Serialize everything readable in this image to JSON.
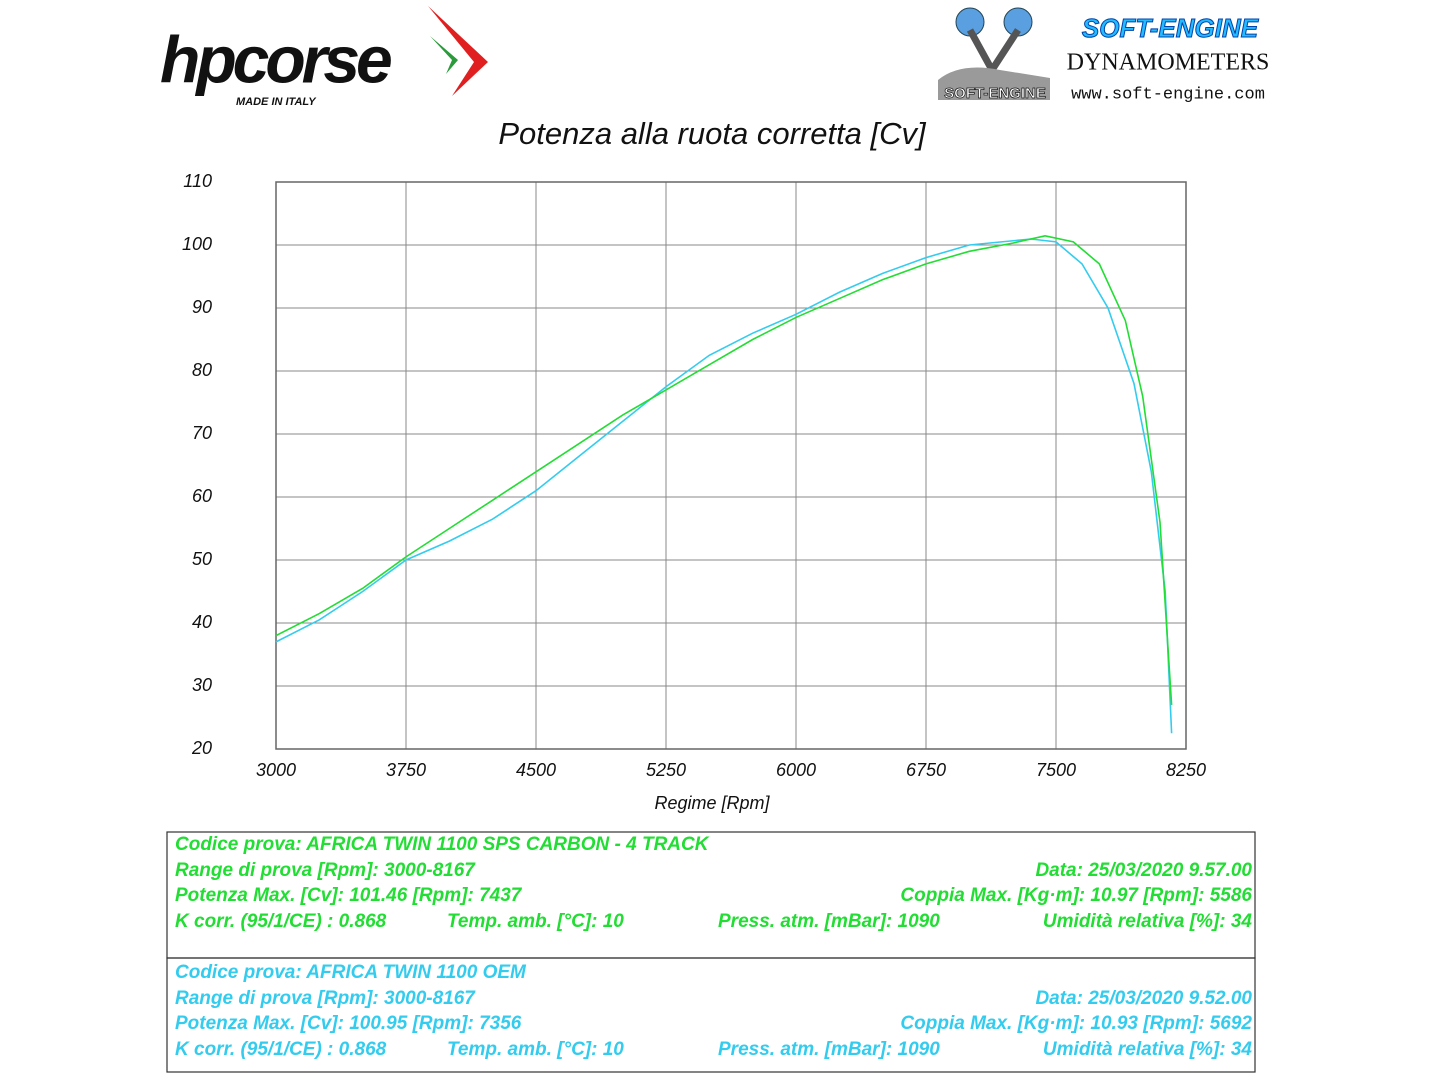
{
  "logos": {
    "brand": "hpcorse",
    "brand_tagline": "MADE IN ITALY",
    "dyno_name": "SOFT-ENGINE",
    "dyno_sub": "DYNAMOMETERS",
    "dyno_small": "SOFT-ENGINE",
    "dyno_url": "www.soft-engine.com"
  },
  "chart_data": {
    "type": "line",
    "title": "Potenza alla ruota corretta [Cv]",
    "x_label": "Regime [Rpm]",
    "xlim": [
      3000,
      8250
    ],
    "xticks": [
      3000,
      3750,
      4500,
      5250,
      6000,
      6750,
      7500,
      8250
    ],
    "ylim": [
      20,
      110
    ],
    "yticks": [
      20,
      30,
      40,
      50,
      60,
      70,
      80,
      90,
      100,
      110
    ],
    "grid": true,
    "series": [
      {
        "color": "#22dd33",
        "x": [
          3000,
          3250,
          3500,
          3750,
          4000,
          4250,
          4500,
          4750,
          5000,
          5250,
          5500,
          5750,
          6000,
          6250,
          6500,
          6750,
          7000,
          7250,
          7437,
          7600,
          7750,
          7900,
          8000,
          8100,
          8167
        ],
        "values": [
          38,
          41.5,
          45.5,
          50.5,
          55,
          59.5,
          64,
          68.5,
          73,
          77,
          81,
          85,
          88.5,
          91.5,
          94.5,
          97,
          99,
          100.3,
          101.46,
          100.5,
          97,
          88,
          76,
          56,
          27
        ]
      },
      {
        "color": "#33ccee",
        "x": [
          3000,
          3250,
          3500,
          3750,
          4000,
          4250,
          4500,
          4750,
          5000,
          5250,
          5500,
          5750,
          6000,
          6250,
          6500,
          6750,
          7000,
          7356,
          7500,
          7650,
          7800,
          7950,
          8050,
          8130,
          8167
        ],
        "values": [
          37,
          40.5,
          45,
          50,
          53,
          56.5,
          61,
          66.5,
          72,
          77.5,
          82.5,
          86,
          89,
          92.5,
          95.5,
          98,
          100,
          100.95,
          100.5,
          97,
          90,
          78,
          64,
          45,
          22.5
        ]
      }
    ]
  },
  "info_boxes": [
    {
      "color": "#22dd33",
      "rows": [
        [
          "Codice prova: AFRICA TWIN 1100   SPS CARBON  -  4 TRACK"
        ],
        [
          "Range di prova [Rpm]: 3000-8167",
          "Data: 25/03/2020  9.57.00"
        ],
        [
          "Potenza Max. [Cv]: 101.46   [Rpm]: 7437",
          "Coppia Max. [Kg·m]: 10.97  [Rpm]: 5586"
        ],
        [
          "K corr. (95/1/CE) : 0.868",
          "Temp. amb. [°C]: 10",
          "Press. atm. [mBar]: 1090",
          "Umidità relativa [%]: 34"
        ]
      ]
    },
    {
      "color": "#33ccee",
      "rows": [
        [
          "Codice prova: AFRICA TWIN 1100  OEM"
        ],
        [
          "Range di prova [Rpm]: 3000-8167",
          "Data: 25/03/2020  9.52.00"
        ],
        [
          "Potenza Max. [Cv]: 100.95   [Rpm]: 7356",
          "Coppia Max. [Kg·m]: 10.93  [Rpm]: 5692"
        ],
        [
          "K corr. (95/1/CE) : 0.868",
          "Temp. amb. [°C]: 10",
          "Press. atm. [mBar]: 1090",
          "Umidità relativa [%]: 34"
        ]
      ]
    }
  ]
}
